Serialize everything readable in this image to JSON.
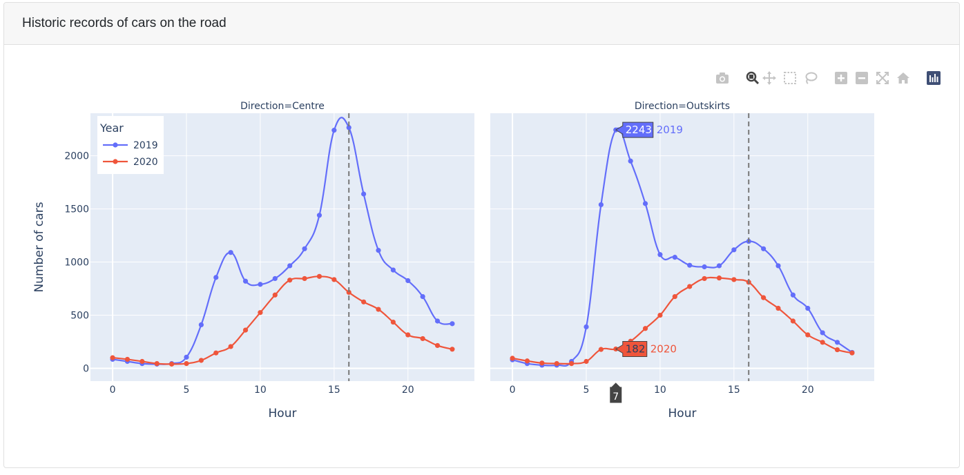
{
  "card": {
    "title": "Historic records of cars on the road"
  },
  "modebar": {
    "icons": [
      "camera-icon",
      "zoom-icon",
      "pan-icon",
      "box-select-icon",
      "lasso-icon",
      "zoom-in-icon",
      "zoom-out-icon",
      "autoscale-icon",
      "reset-axes-icon",
      "plotly-logo-icon"
    ]
  },
  "chart_data": {
    "type": "line",
    "ylabel": "Number of cars",
    "xlabel": "Hour",
    "x": [
      0,
      1,
      2,
      3,
      4,
      5,
      6,
      7,
      8,
      9,
      10,
      11,
      12,
      13,
      14,
      15,
      16,
      17,
      18,
      19,
      20,
      21,
      22,
      23
    ],
    "xticks": [
      0,
      5,
      10,
      15,
      20
    ],
    "xtick_labels": [
      "0",
      "5",
      "10",
      "15",
      "20"
    ],
    "yticks": [
      0,
      500,
      1000,
      1500,
      2000
    ],
    "ytick_labels": [
      "0",
      "500",
      "1000",
      "1500",
      "2000"
    ],
    "xlim": [
      -1.5,
      24.5
    ],
    "ylim": [
      -120,
      2400
    ],
    "legend": {
      "title": "Year",
      "placement": "top-left"
    },
    "series_colors": {
      "2019": "#636efa",
      "2020": "#ef553b"
    },
    "spike_x": 16,
    "facets": [
      {
        "title": "Direction=Centre",
        "series": [
          {
            "name": "2019",
            "values": [
              85,
              65,
              45,
              40,
              45,
              105,
              410,
              855,
              1090,
              820,
              790,
              845,
              965,
              1125,
              1440,
              2240,
              2265,
              1640,
              1110,
              925,
              825,
              675,
              445,
              420
            ]
          },
          {
            "name": "2020",
            "values": [
              100,
              85,
              65,
              45,
              40,
              45,
              75,
              145,
              205,
              360,
              525,
              690,
              830,
              845,
              865,
              835,
              715,
              625,
              555,
              435,
              315,
              280,
              215,
              180
            ]
          }
        ]
      },
      {
        "title": "Direction=Outskirts",
        "series": [
          {
            "name": "2019",
            "values": [
              80,
              45,
              30,
              30,
              65,
              390,
              1540,
              2243,
              1950,
              1550,
              1070,
              1045,
              970,
              955,
              965,
              1115,
              1195,
              1125,
              965,
              690,
              565,
              335,
              245,
              150
            ]
          },
          {
            "name": "2020",
            "values": [
              95,
              70,
              50,
              45,
              45,
              65,
              178,
              182,
              255,
              375,
              500,
              675,
              770,
              845,
              850,
              835,
              810,
              665,
              565,
              445,
              315,
              245,
              175,
              145
            ]
          }
        ],
        "hover": {
          "x_label": "7",
          "labels": [
            {
              "series": "2019",
              "value": "2243",
              "name": "2019"
            },
            {
              "series": "2020",
              "value": "182",
              "name": "2020"
            }
          ]
        }
      }
    ]
  }
}
